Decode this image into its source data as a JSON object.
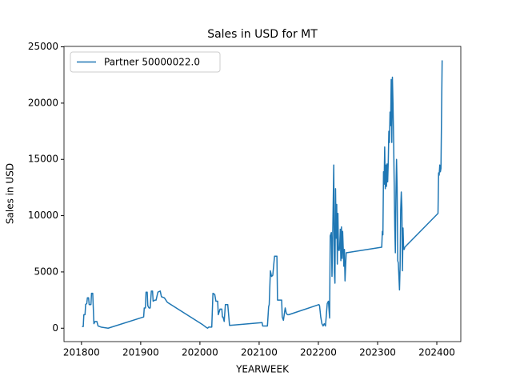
{
  "chart_data": {
    "type": "line",
    "title": "Sales in USD for MT",
    "x_label": "YEARWEEK",
    "y_label": "Sales in USD",
    "x": [
      201801,
      201803,
      201804,
      201806,
      201807,
      201809,
      201810,
      201812,
      201813,
      201816,
      201817,
      201819,
      201821,
      201823,
      201826,
      201828,
      201833,
      201845,
      201905,
      201906,
      201908,
      201909,
      201911,
      201912,
      201914,
      201916,
      201918,
      201920,
      201921,
      201924,
      201926,
      201929,
      201933,
      201935,
      201940,
      201945,
      202005,
      202010,
      202013,
      202015,
      202020,
      202022,
      202025,
      202027,
      202030,
      202031,
      202034,
      202037,
      202038,
      202039,
      202041,
      202043,
      202047,
      202050,
      202105,
      202106,
      202114,
      202116,
      202117,
      202119,
      202121,
      202123,
      202126,
      202130,
      202131,
      202138,
      202139,
      202141,
      202144,
      202146,
      202148,
      202150,
      202201,
      202202,
      202204,
      202206,
      202208,
      202210,
      202212,
      202215,
      202217,
      202219,
      202220,
      202222,
      202223,
      202224,
      202226,
      202227,
      202228,
      202229,
      202230,
      202231,
      202232,
      202233,
      202234,
      202235,
      202236,
      202237,
      202238,
      202239,
      202240,
      202241,
      202242,
      202243,
      202244,
      202245,
      202247,
      202307,
      202308,
      202309,
      202310,
      202311,
      202312,
      202313,
      202314,
      202315,
      202316,
      202317,
      202318,
      202319,
      202320,
      202321,
      202322,
      202323,
      202324,
      202325,
      202326,
      202327,
      202328,
      202329,
      202330,
      202331,
      202332,
      202333,
      202334,
      202335,
      202337,
      202338,
      202339,
      202340,
      202341,
      202342,
      202343,
      202344,
      202345,
      202346,
      202402,
      202403,
      202404,
      202405,
      202406,
      202407,
      202408,
      202409
    ],
    "series": [
      {
        "name": "Partner 50000022.0",
        "color": "#1f77b4",
        "values": [
          150,
          150,
          1200,
          1200,
          2100,
          2200,
          2700,
          2700,
          2100,
          2100,
          3100,
          3100,
          400,
          600,
          600,
          200,
          100,
          0,
          1000,
          1800,
          1800,
          3200,
          3200,
          2000,
          1800,
          1800,
          3300,
          3300,
          2400,
          2500,
          2500,
          3200,
          3300,
          2800,
          2700,
          2300,
          300,
          100,
          0,
          100,
          100,
          3100,
          3000,
          2400,
          2400,
          1200,
          1700,
          1700,
          1000,
          1000,
          600,
          2100,
          2100,
          250,
          500,
          200,
          200,
          1900,
          2100,
          5100,
          4600,
          4700,
          6400,
          6400,
          2500,
          2500,
          1000,
          700,
          1800,
          1300,
          1200,
          1200,
          2100,
          2000,
          1000,
          400,
          200,
          400,
          200,
          2200,
          2400,
          900,
          8200,
          8500,
          4600,
          7500,
          14500,
          5000,
          4000,
          12400,
          8000,
          11000,
          5700,
          10200,
          7000,
          6900,
          7200,
          8800,
          6000,
          9000,
          6200,
          8600,
          7100,
          5500,
          7000,
          4200,
          6700,
          7200,
          8600,
          8300,
          13900,
          12800,
          16100,
          12400,
          14500,
          12600,
          14600,
          13000,
          14700,
          17500,
          16500,
          19200,
          18000,
          22100,
          16500,
          22300,
          20000,
          17000,
          13000,
          9000,
          6700,
          12000,
          15000,
          12500,
          6000,
          5800,
          3400,
          5500,
          10500,
          12100,
          10700,
          5100,
          8900,
          7000,
          7000,
          7200,
          10200,
          13800,
          13600,
          14500,
          13900,
          14200,
          19000,
          23800
        ]
      }
    ],
    "xlim": [
      201770.5,
      202440.5
    ],
    "xticks": [
      201800,
      201900,
      202000,
      202100,
      202200,
      202300,
      202400
    ],
    "ylim": [
      -1190,
      25040
    ],
    "yticks": [
      0,
      5000,
      10000,
      15000,
      20000,
      25000
    ],
    "grid": false,
    "legend": "upper left"
  }
}
